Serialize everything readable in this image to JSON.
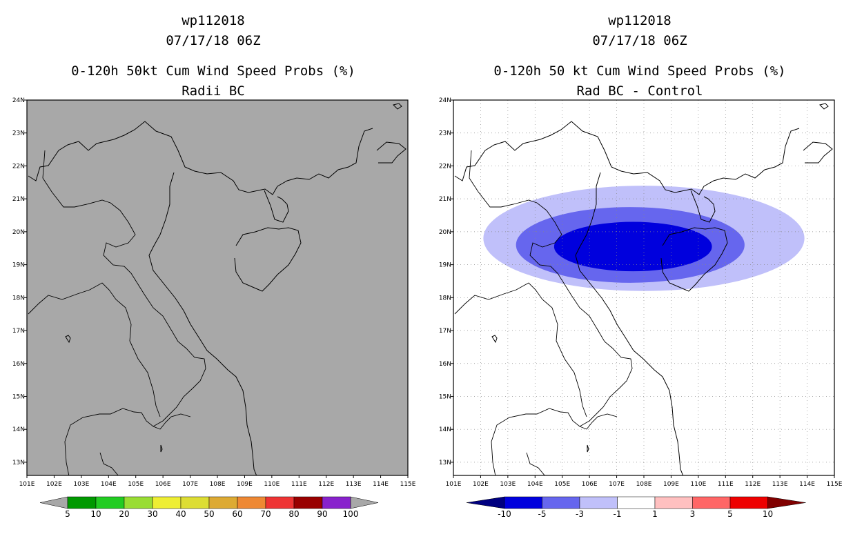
{
  "panels": [
    {
      "storm_id": "wp112018",
      "datetime": "07/17/18 06Z",
      "product": "0-120h 50kt Cum Wind Speed Probs (%)",
      "subtitle": "Radii BC",
      "map_background": "#a8a8a8",
      "colorbar": {
        "labels": [
          "5",
          "10",
          "20",
          "30",
          "40",
          "50",
          "60",
          "70",
          "80",
          "90",
          "100"
        ],
        "colors": [
          "#009900",
          "#22cc22",
          "#99dd33",
          "#eeee33",
          "#dddd33",
          "#ddaa33",
          "#ee8833",
          "#ee3333",
          "#990000",
          "#8822cc"
        ],
        "end_color": "#a8a8a8"
      }
    },
    {
      "storm_id": "wp112018",
      "datetime": "07/17/18 06Z",
      "product": "0-120h 50 kt Cum Wind Speed Probs (%)",
      "subtitle": "Rad BC - Control",
      "map_background": "#ffffff",
      "colorbar": {
        "labels": [
          "-10",
          "-5",
          "-3",
          "-1",
          "1",
          "3",
          "5",
          "10"
        ],
        "colors": [
          "#0000dd",
          "#6666ee",
          "#c0c0fa",
          "#ffffff",
          "#ffc0c0",
          "#ff6666",
          "#ee0000"
        ],
        "left_end_color": "#000080",
        "right_end_color": "#800000"
      }
    }
  ],
  "axes": {
    "lon_labels": [
      "101E",
      "102E",
      "103E",
      "104E",
      "105E",
      "106E",
      "107E",
      "108E",
      "109E",
      "110E",
      "111E",
      "112E",
      "113E",
      "114E",
      "115E"
    ],
    "lat_labels": [
      "13N",
      "14N",
      "15N",
      "16N",
      "17N",
      "18N",
      "19N",
      "20N",
      "21N",
      "22N",
      "23N",
      "24N"
    ],
    "lon_range": [
      101,
      115
    ],
    "lat_range": [
      12.6,
      24
    ]
  },
  "difference_field": {
    "contours": [
      {
        "level": "-1",
        "color": "#c0c0fa",
        "center": [
          108,
          19.8
        ],
        "half_width_deg": 5.9,
        "half_height_deg": 1.6
      },
      {
        "level": "-3",
        "color": "#6666ee",
        "center": [
          107.5,
          19.6
        ],
        "half_width_deg": 4.2,
        "half_height_deg": 1.15
      },
      {
        "level": "-5",
        "color": "#0000dd",
        "center": [
          107.6,
          19.55
        ],
        "half_width_deg": 2.9,
        "half_height_deg": 0.75
      }
    ]
  }
}
